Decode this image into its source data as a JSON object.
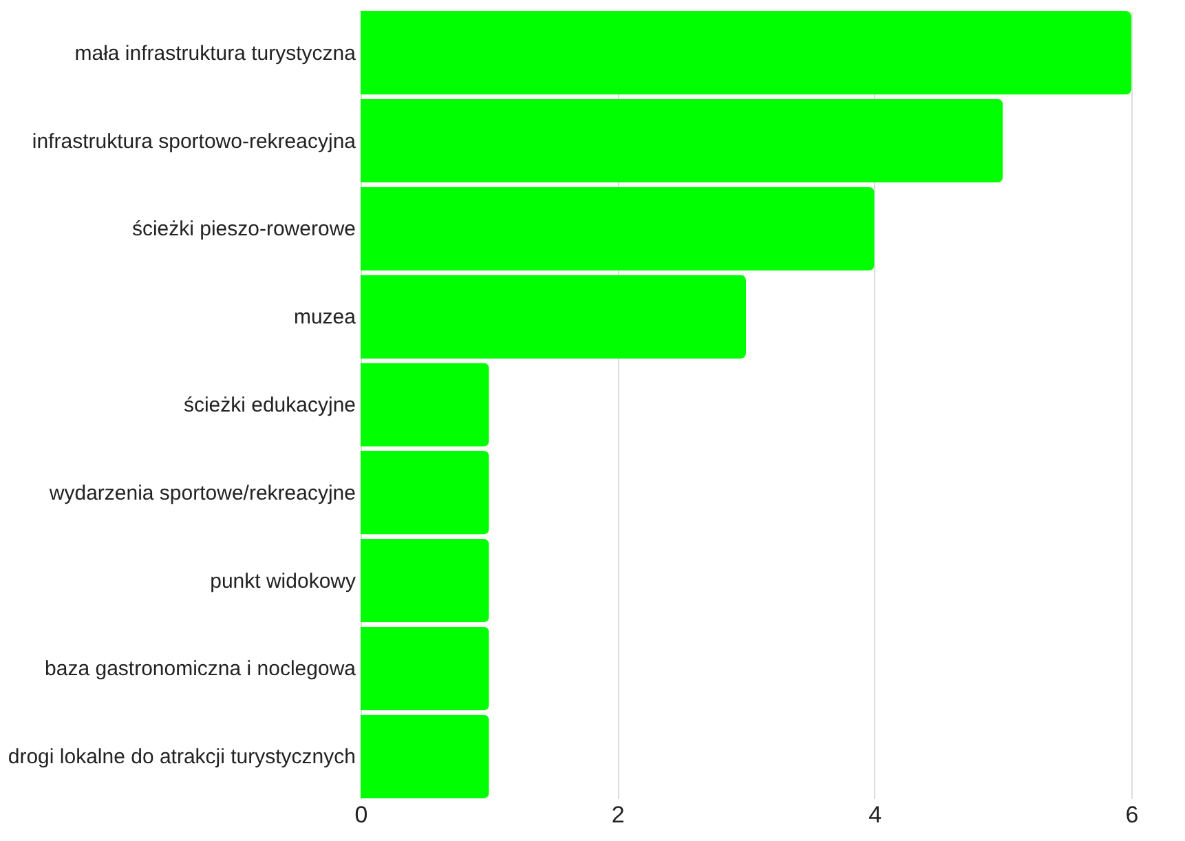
{
  "chart_data": {
    "type": "bar",
    "orientation": "horizontal",
    "categories": [
      "mała infrastruktura turystyczna",
      "infrastruktura sportowo-rekreacyjna",
      "ścieżki pieszo-rowerowe",
      "muzea",
      "ścieżki edukacyjne",
      "wydarzenia sportowe/rekreacyjne",
      "punkt widokowy",
      "baza gastronomiczna i noclegowa",
      "drogi lokalne do atrakcji turystycznych"
    ],
    "values": [
      6,
      5,
      4,
      3,
      1,
      1,
      1,
      1,
      1
    ],
    "color": "#00ff00",
    "xlim": [
      0,
      6
    ],
    "xticks": [
      0,
      2,
      4,
      6
    ],
    "grid": "x"
  }
}
